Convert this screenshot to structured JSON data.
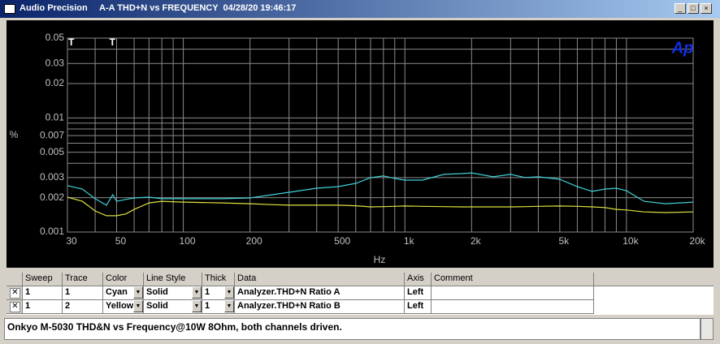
{
  "window": {
    "app": "Audio Precision",
    "title": "A-A THD+N vs FREQUENCY  04/28/20 19:46:17",
    "logo": "Ap"
  },
  "chart_data": {
    "type": "line",
    "xlabel": "Hz",
    "ylabel": "%",
    "xscale": "log",
    "yscale": "log",
    "grid": true,
    "xlim": [
      30,
      20000
    ],
    "ylim": [
      0.001,
      0.05
    ],
    "xticks": [
      30,
      50,
      100,
      200,
      500,
      {
        "value": 1000,
        "label": "1k"
      },
      {
        "value": 2000,
        "label": "2k"
      },
      {
        "value": 5000,
        "label": "5k"
      },
      {
        "value": 10000,
        "label": "10k"
      },
      {
        "value": 20000,
        "label": "20k"
      }
    ],
    "xminor": [
      40,
      60,
      70,
      80,
      90,
      300,
      400,
      600,
      700,
      800,
      900,
      3000,
      4000,
      6000,
      7000,
      8000,
      9000
    ],
    "yticks": [
      0.05,
      0.03,
      0.02,
      0.01,
      0.007,
      0.005,
      0.003,
      0.002,
      0.001
    ],
    "yminor": [
      0.04,
      0.009,
      0.008,
      0.006,
      0.004
    ],
    "markers": [
      {
        "label": "T",
        "x": 30
      },
      {
        "label": "T",
        "x": 46
      }
    ],
    "x": [
      30,
      35,
      40,
      45,
      48,
      50,
      55,
      60,
      70,
      80,
      100,
      150,
      200,
      250,
      300,
      400,
      500,
      600,
      700,
      800,
      900,
      1000,
      1200,
      1500,
      1800,
      2000,
      2500,
      3000,
      3500,
      4000,
      5000,
      6000,
      7000,
      8000,
      9000,
      10000,
      12000,
      15000,
      20000
    ],
    "series": [
      {
        "name": "Analyzer.THD+N Ratio A",
        "color": "#40d0d8",
        "values": [
          0.00255,
          0.00238,
          0.00196,
          0.00172,
          0.00212,
          0.00186,
          0.00193,
          0.00199,
          0.00202,
          0.00196,
          0.00196,
          0.00196,
          0.00199,
          0.00212,
          0.00223,
          0.00242,
          0.0025,
          0.00267,
          0.003,
          0.0031,
          0.00295,
          0.00285,
          0.00285,
          0.0032,
          0.00325,
          0.0033,
          0.00305,
          0.0032,
          0.003,
          0.00305,
          0.0029,
          0.0025,
          0.00227,
          0.00238,
          0.00242,
          0.0023,
          0.00186,
          0.00177,
          0.00183
        ]
      },
      {
        "name": "Analyzer.THD+N Ratio B",
        "color": "#e0e040",
        "values": [
          0.00202,
          0.00186,
          0.00153,
          0.00139,
          0.00139,
          0.00139,
          0.00144,
          0.00158,
          0.0018,
          0.00186,
          0.00183,
          0.0018,
          0.00177,
          0.00174,
          0.00172,
          0.00172,
          0.00172,
          0.0017,
          0.00166,
          0.00167,
          0.00168,
          0.00169,
          0.00168,
          0.00167,
          0.00166,
          0.00166,
          0.00166,
          0.00166,
          0.00167,
          0.00168,
          0.00169,
          0.00168,
          0.00166,
          0.00164,
          0.00158,
          0.00156,
          0.0015,
          0.00148,
          0.0015
        ]
      }
    ]
  },
  "table": {
    "headers": [
      "Sweep",
      "Trace",
      "Color",
      "Line Style",
      "Thick",
      "Data",
      "Axis",
      "Comment"
    ],
    "rows": [
      [
        "1",
        "1",
        "Cyan",
        "Solid",
        "1",
        "Analyzer.THD+N Ratio A",
        "Left"
      ],
      [
        "1",
        "2",
        "Yellow",
        "Solid",
        "1",
        "Analyzer.THD+N Ratio B",
        "Left"
      ]
    ]
  },
  "comment": "Onkyo M-5030 THD&N vs Frequency@10W 8Ohm, both channels driven."
}
